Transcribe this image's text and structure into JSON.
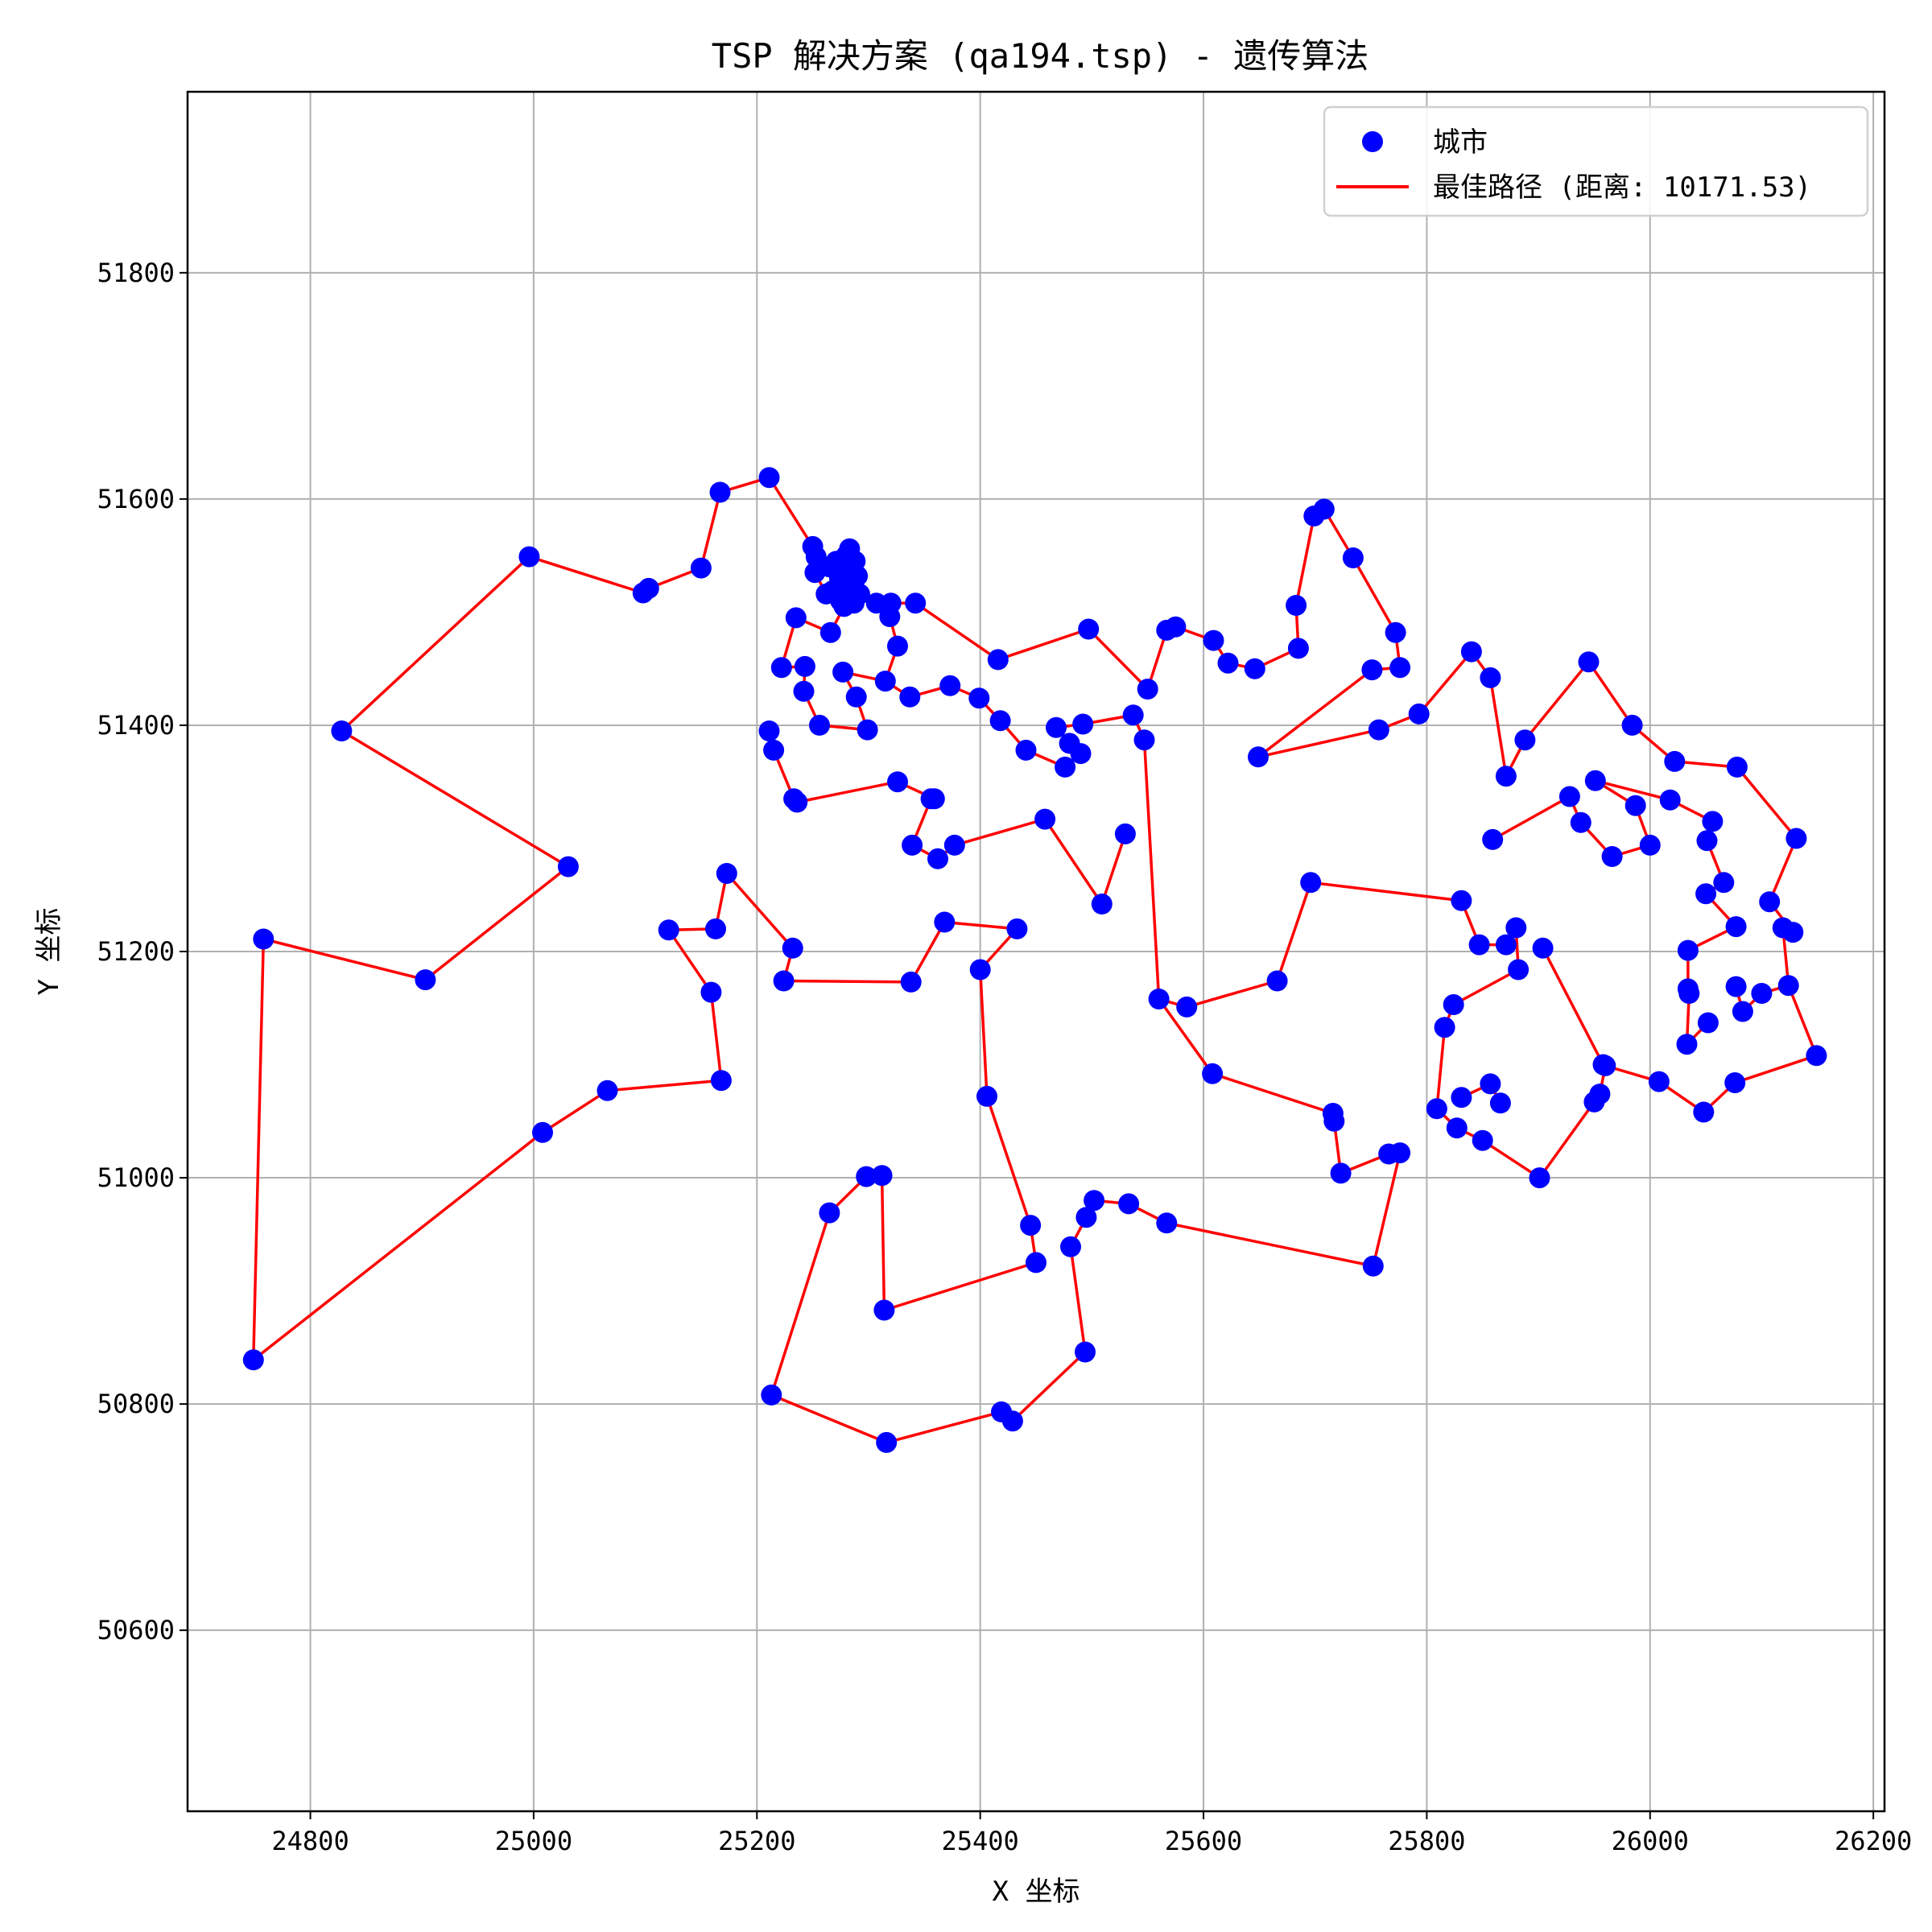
{
  "chart_data": {
    "type": "scatter",
    "title": "TSP 解决方案 (qa194.tsp) - 遗传算法",
    "xlabel": "X 坐标",
    "ylabel": "Y 坐标",
    "xlim": [
      24690,
      26210
    ],
    "ylim": [
      50440,
      51960
    ],
    "xticks": [
      24800,
      25000,
      25200,
      25400,
      25600,
      25800,
      26000,
      26200
    ],
    "yticks": [
      50600,
      50800,
      51000,
      51200,
      51400,
      51600,
      51800
    ],
    "grid": true,
    "legend_position": "top-right",
    "legend": [
      "城市",
      "最佳路径 (距离: 10171.53)"
    ],
    "colors": {
      "cities": "#0000ff",
      "route": "#ff0000"
    },
    "route": [
      [
        24749,
        50839
      ],
      [
        24758,
        51211
      ],
      [
        24903,
        51175
      ],
      [
        25031,
        51275
      ],
      [
        24828,
        51395
      ],
      [
        24996,
        51549
      ],
      [
        25098,
        51517
      ],
      [
        25103,
        51521
      ],
      [
        25150,
        51539
      ],
      [
        25167,
        51606
      ],
      [
        25211,
        51619
      ],
      [
        25250,
        51558
      ],
      [
        25253,
        51549
      ],
      [
        25252,
        51535
      ],
      [
        25262,
        51516
      ],
      [
        25268,
        51519
      ],
      [
        25275,
        51510
      ],
      [
        25281,
        51520
      ],
      [
        25274,
        51530
      ],
      [
        25265,
        51540
      ],
      [
        25271,
        51545
      ],
      [
        25280,
        51550
      ],
      [
        25283,
        51556
      ],
      [
        25288,
        51545
      ],
      [
        25284,
        51540
      ],
      [
        25290,
        51532
      ],
      [
        25285,
        51522
      ],
      [
        25292,
        51516
      ],
      [
        25287,
        51508
      ],
      [
        25278,
        51505
      ],
      [
        25266,
        51482
      ],
      [
        25235,
        51495
      ],
      [
        25222,
        51451
      ],
      [
        25243,
        51452
      ],
      [
        25242,
        51430
      ],
      [
        25256,
        51400
      ],
      [
        25299,
        51396
      ],
      [
        25289,
        51425
      ],
      [
        25277,
        51447
      ],
      [
        25315,
        51439
      ],
      [
        25326,
        51470
      ],
      [
        25319,
        51496
      ],
      [
        25320,
        51508
      ],
      [
        25307,
        51508
      ],
      [
        25342,
        51508
      ],
      [
        25416,
        51458
      ],
      [
        25497,
        51485
      ],
      [
        25550,
        51432
      ],
      [
        25567,
        51484
      ],
      [
        25575,
        51487
      ],
      [
        25609,
        51475
      ],
      [
        25622,
        51455
      ],
      [
        25646,
        51450
      ],
      [
        25685,
        51468
      ],
      [
        25683,
        51506
      ],
      [
        25699,
        51585
      ],
      [
        25708,
        51591
      ],
      [
        25734,
        51548
      ],
      [
        25772,
        51482
      ],
      [
        25776,
        51451
      ],
      [
        25751,
        51449
      ],
      [
        25649,
        51372
      ],
      [
        25757,
        51396
      ],
      [
        25793,
        51410
      ],
      [
        25840,
        51465
      ],
      [
        25857,
        51442
      ],
      [
        25871,
        51355
      ],
      [
        25888,
        51387
      ],
      [
        25945,
        51456
      ],
      [
        25984,
        51400
      ],
      [
        26022,
        51368
      ],
      [
        26078,
        51363
      ],
      [
        26131,
        51300
      ],
      [
        26107,
        51244
      ],
      [
        26128,
        51217
      ],
      [
        26119,
        51221
      ],
      [
        26124,
        51170
      ],
      [
        26149,
        51108
      ],
      [
        26076,
        51084
      ],
      [
        26048,
        51058
      ],
      [
        26008,
        51085
      ],
      [
        25960,
        51099
      ],
      [
        25955,
        51074
      ],
      [
        25950,
        51067
      ],
      [
        25901,
        51000
      ],
      [
        25850,
        51033
      ],
      [
        25827,
        51044
      ],
      [
        25809,
        51061
      ],
      [
        25816,
        51133
      ],
      [
        25824,
        51153
      ],
      [
        25882,
        51184
      ],
      [
        25880,
        51221
      ],
      [
        25871,
        51206
      ],
      [
        25847,
        51206
      ],
      [
        25831,
        51245
      ],
      [
        25696,
        51261
      ],
      [
        25666,
        51174
      ],
      [
        25585,
        51151
      ],
      [
        25560,
        51158
      ],
      [
        25547,
        51387
      ],
      [
        25537,
        51409
      ],
      [
        25492,
        51401
      ],
      [
        25468,
        51398
      ],
      [
        25480,
        51384
      ],
      [
        25490,
        51375
      ],
      [
        25476,
        51363
      ],
      [
        25441,
        51378
      ],
      [
        25418,
        51404
      ],
      [
        25399,
        51424
      ],
      [
        25373,
        51435
      ],
      [
        25337,
        51425
      ],
      [
        25315,
        51439
      ]
    ],
    "route2": [
      [
        25359,
        51335
      ],
      [
        25326,
        51350
      ],
      [
        25236,
        51332
      ],
      [
        25233,
        51335
      ],
      [
        25215,
        51378
      ],
      [
        25211,
        51395
      ]
    ],
    "route3": [
      [
        25356,
        51335
      ],
      [
        25339,
        51294
      ],
      [
        25362,
        51282
      ],
      [
        25377,
        51294
      ],
      [
        25458,
        51317
      ],
      [
        25509,
        51242
      ],
      [
        25530,
        51304
      ]
    ],
    "route4": [
      [
        25560,
        51158
      ],
      [
        25608,
        51092
      ],
      [
        25716,
        51057
      ],
      [
        25717,
        51050
      ],
      [
        25723,
        51004
      ],
      [
        25766,
        51021
      ],
      [
        25776,
        51022
      ],
      [
        25752,
        50922
      ],
      [
        25567,
        50960
      ],
      [
        25533,
        50977
      ],
      [
        25502,
        50980
      ],
      [
        25495,
        50965
      ],
      [
        25481,
        50939
      ],
      [
        25494,
        50846
      ],
      [
        25429,
        50785
      ],
      [
        25419,
        50793
      ],
      [
        25316,
        50766
      ],
      [
        25213,
        50808
      ],
      [
        25265,
        50969
      ],
      [
        25298,
        51001
      ],
      [
        25312,
        51002
      ],
      [
        25314,
        50883
      ],
      [
        25450,
        50925
      ],
      [
        25445,
        50958
      ],
      [
        25406,
        51072
      ],
      [
        25400,
        51184
      ],
      [
        25433,
        51220
      ],
      [
        25368,
        51226
      ],
      [
        25338,
        51173
      ],
      [
        25224,
        51174
      ],
      [
        25232,
        51203
      ],
      [
        25173,
        51269
      ],
      [
        25163,
        51220
      ],
      [
        25121,
        51219
      ],
      [
        25159,
        51164
      ],
      [
        25168,
        51086
      ],
      [
        25066,
        51077
      ],
      [
        25008,
        51040
      ],
      [
        24749,
        50839
      ]
    ],
    "route5": [
      [
        25904,
        51203
      ],
      [
        25958,
        51100
      ]
    ],
    "route6": [
      [
        25859,
        51299
      ],
      [
        25928,
        51337
      ],
      [
        25938,
        51314
      ],
      [
        25966,
        51284
      ],
      [
        26000,
        51294
      ],
      [
        25987,
        51329
      ],
      [
        25951,
        51351
      ],
      [
        26018,
        51334
      ],
      [
        26056,
        51315
      ],
      [
        26051,
        51298
      ],
      [
        26066,
        51261
      ],
      [
        26050,
        51251
      ],
      [
        26077,
        51222
      ],
      [
        26034,
        51201
      ],
      [
        26034,
        51167
      ],
      [
        26035,
        51163
      ],
      [
        26033,
        51118
      ],
      [
        26052,
        51137
      ]
    ],
    "route7": [
      [
        26077,
        51169
      ],
      [
        26083,
        51147
      ],
      [
        26100,
        51163
      ],
      [
        26124,
        51170
      ]
    ],
    "route8": [
      [
        25831,
        51071
      ],
      [
        25857,
        51083
      ],
      [
        25866,
        51066
      ]
    ]
  }
}
